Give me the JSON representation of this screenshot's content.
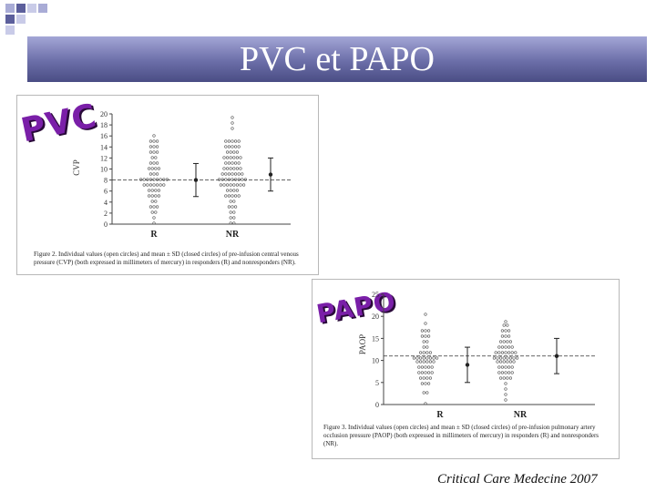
{
  "slide": {
    "title": "PVC et PAPO",
    "footer": "Critical Care Medecine 2007",
    "accent_color": "#6b6ea8"
  },
  "figure1": {
    "stamp": "PVC",
    "ylabel": "CVP",
    "caption": "Figure 2. Individual values (open circles) and mean ± SD (closed circles) of pre-infusion central venous pressure (CVP) (both expressed in millimeters of mercury) in responders (R) and nonresponders (NR).",
    "chart_data": {
      "type": "scatter",
      "categories": [
        "R",
        "NR"
      ],
      "ylabel": "CVP",
      "ylim": [
        0,
        20
      ],
      "yticks": [
        0,
        2,
        4,
        6,
        8,
        10,
        12,
        14,
        16,
        18,
        20
      ],
      "reference_line": 8,
      "series": [
        {
          "category": "R",
          "mean": 8,
          "sd": 3
        },
        {
          "category": "NR",
          "mean": 9,
          "sd": 3
        }
      ]
    }
  },
  "figure2": {
    "stamp": "PAPO",
    "ylabel": "PAOP",
    "caption": "Figure 3. Individual values (open circles) and mean ± SD (closed circles) of pre-infusion pulmonary artery occlusion pressure (PAOP) (both expressed in millimeters of mercury) in responders (R) and nonresponders (NR).",
    "chart_data": {
      "type": "scatter",
      "categories": [
        "R",
        "NR"
      ],
      "ylabel": "PAOP",
      "ylim": [
        0,
        25
      ],
      "yticks": [
        0,
        5,
        10,
        15,
        20,
        25
      ],
      "reference_line": 11,
      "series": [
        {
          "category": "R",
          "mean": 9,
          "sd": 4
        },
        {
          "category": "NR",
          "mean": 11,
          "sd": 4
        }
      ]
    }
  }
}
